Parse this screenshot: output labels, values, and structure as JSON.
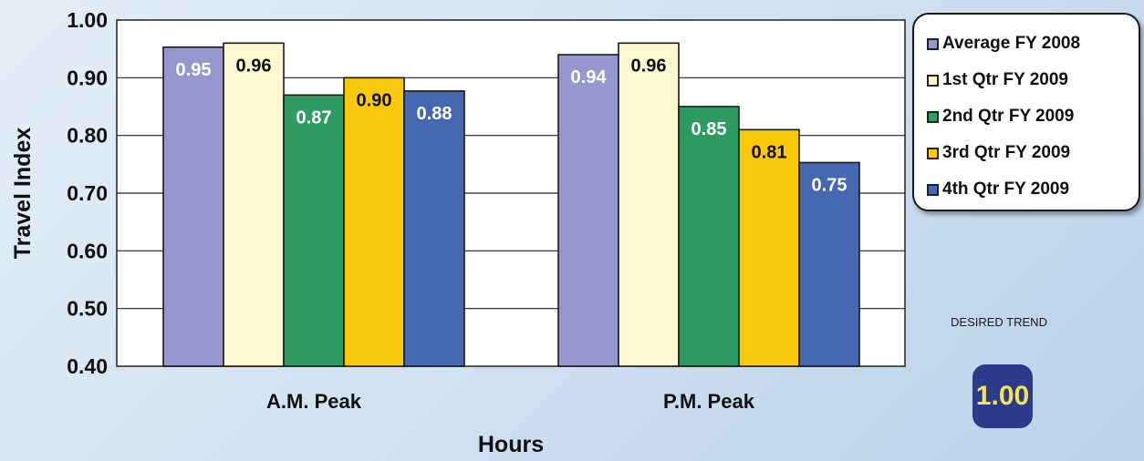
{
  "chart_data": {
    "type": "bar",
    "categories": [
      "A.M. Peak",
      "P.M. Peak"
    ],
    "series": [
      {
        "name": "Average FY 2008",
        "values": [
          0.95,
          0.94
        ],
        "color": "#9797cf"
      },
      {
        "name": "1st Qtr FY 2009",
        "values": [
          0.96,
          0.96
        ],
        "color": "#fbf8d2"
      },
      {
        "name": "2nd Qtr FY 2009",
        "values": [
          0.87,
          0.85
        ],
        "color": "#2e9b63"
      },
      {
        "name": "3rd Qtr FY 2009",
        "values": [
          0.9,
          0.81
        ],
        "color": "#f9c90b"
      },
      {
        "name": "4th Qtr FY 2009",
        "values": [
          0.88,
          0.75
        ],
        "color": "#4668b0"
      }
    ],
    "bar_heights": [
      [
        0.953,
        0.94
      ],
      [
        0.96,
        0.96
      ],
      [
        0.87,
        0.85
      ],
      [
        0.9,
        0.81
      ],
      [
        0.877,
        0.753
      ]
    ],
    "xlabel": "Hours",
    "ylabel": "Travel Index",
    "ylim": [
      0.4,
      1.0
    ],
    "yticks": [
      "0.40",
      "0.50",
      "0.60",
      "0.70",
      "0.80",
      "0.90",
      "1.00"
    ],
    "grid": true,
    "legend_position": "top-right"
  },
  "desired_trend": {
    "label": "DESIRED TREND",
    "value": "1.00"
  }
}
